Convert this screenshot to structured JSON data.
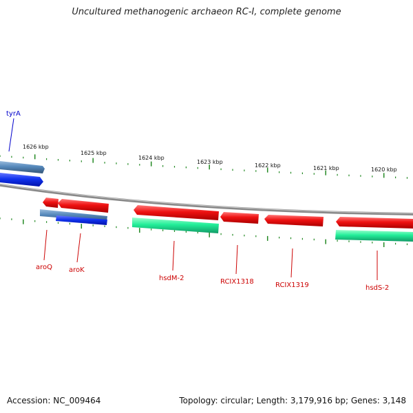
{
  "title": "Uncultured methanogenic archaeon RC-I, complete genome",
  "footer": {
    "accession": "Accession: NC_009464",
    "topology": "Topology: circular; Length: 3,179,916 bp; Genes: 3,148"
  },
  "ruler_labels": [
    "1626 kbp",
    "1625 kbp",
    "1624 kbp",
    "1623 kbp",
    "1622 kbp",
    "1621 kbp",
    "1620 kbp"
  ],
  "gene_labels": [
    "tyrA",
    "aroQ",
    "aroK",
    "hsdM-2",
    "RCIX1318",
    "RCIX1319",
    "hsdS-2"
  ],
  "colors": {
    "red_gene": "#ee1111",
    "blue_gene": "#1133ee",
    "steel_gene": "#5588bb",
    "green_gene": "#22ee99",
    "tick": "#228822",
    "backbone": "#888888",
    "red_label": "#cc0000",
    "blue_label": "#0000cc"
  }
}
